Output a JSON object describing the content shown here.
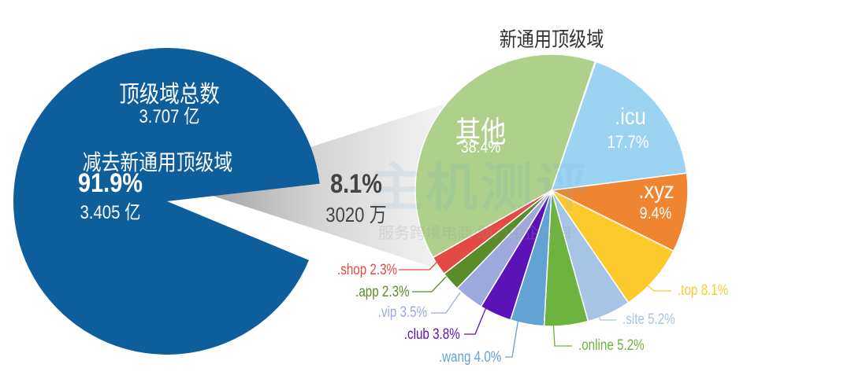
{
  "chart_data": [
    {
      "type": "pie",
      "title": "",
      "labels": [
        "顶级域总数",
        "3.707 亿",
        "减去新通用顶级域",
        "91.9%",
        "3.405 亿"
      ],
      "slices": [
        {
          "name": "减去新通用顶级域",
          "value": 91.9,
          "color": "#0f5e9c"
        },
        {
          "name": "新通用顶级域",
          "value": 8.1,
          "color": "#bdbdbd"
        }
      ],
      "total_label": "顶级域总数",
      "total_value": "3.707 亿",
      "remain_label": "减去新通用顶级域",
      "remain_pct": "91.9%",
      "remain_value": "3.405 亿",
      "split_pct": "8.1%",
      "split_value": "3020 万"
    },
    {
      "type": "pie",
      "title": "新通用顶级域",
      "slices": [
        {
          "name": ".icu",
          "value": 17.7,
          "label": "17.7%",
          "color": "#9dd3f2"
        },
        {
          "name": ".xyz",
          "value": 9.4,
          "label": "9.4%",
          "color": "#ef8531"
        },
        {
          "name": ".top",
          "value": 8.1,
          "label": ".top 8.1%",
          "color": "#fdca2e"
        },
        {
          "name": ".site",
          "value": 5.2,
          "label": ".site 5.2%",
          "color": "#a6c4e6"
        },
        {
          "name": ".online",
          "value": 5.2,
          "label": ".online 5.2%",
          "color": "#6db33f"
        },
        {
          "name": ".wang",
          "value": 4.0,
          "label": ".wang 4.0%",
          "color": "#63a3d4"
        },
        {
          "name": ".club",
          "value": 3.8,
          "label": ".club 3.8%",
          "color": "#5b13b8"
        },
        {
          "name": ".vip",
          "value": 3.5,
          "label": ".vip 3.5%",
          "color": "#9ea9de"
        },
        {
          "name": ".app",
          "value": 2.3,
          "label": ".app 2.3%",
          "color": "#5a8c2a"
        },
        {
          "name": ".shop",
          "value": 2.3,
          "label": ".shop 2.3%",
          "color": "#e34a44"
        },
        {
          "name": "其他",
          "value": 38.4,
          "label": "38.4%",
          "color": "#aed08a"
        }
      ]
    }
  ],
  "watermark": {
    "logo": "主机测评",
    "slogan": "服务跨境电商 助力中企出海"
  }
}
